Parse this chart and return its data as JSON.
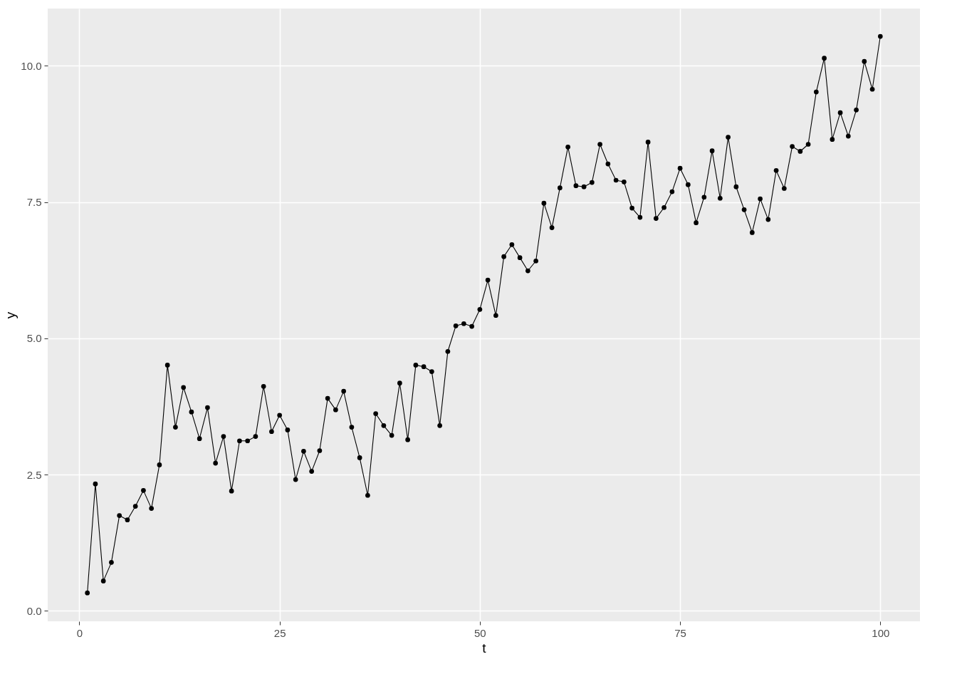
{
  "chart_data": {
    "type": "line",
    "xlabel": "t",
    "ylabel": "y",
    "x": [
      1,
      2,
      3,
      4,
      5,
      6,
      7,
      8,
      9,
      10,
      11,
      12,
      13,
      14,
      15,
      16,
      17,
      18,
      19,
      20,
      21,
      22,
      23,
      24,
      25,
      26,
      27,
      28,
      29,
      30,
      31,
      32,
      33,
      34,
      35,
      36,
      37,
      38,
      39,
      40,
      41,
      42,
      43,
      44,
      45,
      46,
      47,
      48,
      49,
      50,
      51,
      52,
      53,
      54,
      55,
      56,
      57,
      58,
      59,
      60,
      61,
      62,
      63,
      64,
      65,
      66,
      67,
      68,
      69,
      70,
      71,
      72,
      73,
      74,
      75,
      76,
      77,
      78,
      79,
      80,
      81,
      82,
      83,
      84,
      85,
      86,
      87,
      88,
      89,
      90,
      91,
      92,
      93,
      94,
      95,
      96,
      97,
      98,
      99,
      100
    ],
    "series": [
      {
        "color": "#000000",
        "values": [
          0.33,
          2.33,
          0.55,
          0.89,
          1.75,
          1.67,
          1.92,
          2.21,
          1.88,
          2.68,
          4.51,
          3.37,
          4.1,
          3.65,
          3.16,
          3.73,
          2.71,
          3.2,
          2.2,
          3.12,
          3.12,
          3.2,
          4.12,
          3.29,
          3.59,
          3.32,
          2.41,
          2.93,
          2.56,
          2.94,
          3.9,
          3.69,
          4.03,
          3.37,
          2.81,
          2.12,
          3.62,
          3.4,
          3.22,
          4.18,
          3.14,
          4.51,
          4.48,
          4.39,
          3.4,
          4.76,
          5.23,
          5.27,
          5.22,
          5.53,
          6.07,
          5.42,
          6.5,
          6.72,
          6.48,
          6.24,
          6.42,
          7.48,
          7.03,
          7.76,
          8.51,
          7.8,
          7.78,
          7.86,
          8.56,
          8.2,
          7.9,
          7.87,
          7.39,
          7.22,
          8.6,
          7.2,
          7.4,
          7.69,
          8.12,
          7.82,
          7.12,
          7.59,
          8.44,
          7.57,
          8.69,
          7.78,
          7.36,
          6.94,
          7.56,
          7.18,
          8.08,
          7.75,
          8.52,
          8.43,
          8.56,
          9.52,
          10.14,
          8.65,
          9.14,
          8.71,
          9.19,
          10.08,
          9.57,
          10.54
        ]
      }
    ],
    "xlim": [
      -3.95,
      104.95
    ],
    "ylim": [
      -0.19,
      11.05
    ],
    "xticks": [
      0,
      25,
      50,
      75,
      100
    ],
    "yticks": [
      {
        "value": 0,
        "label": "0.0"
      },
      2.5,
      {
        "value": 5,
        "label": "5.0"
      },
      7.5,
      {
        "value": 10,
        "label": "10.0"
      }
    ],
    "grid": true,
    "marker": "circle",
    "line_style": "solid"
  }
}
